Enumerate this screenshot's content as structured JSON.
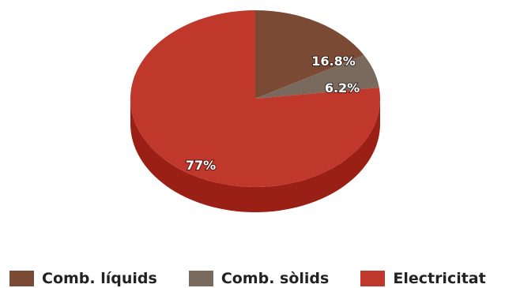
{
  "chart_data": {
    "type": "pie",
    "style": "3d",
    "categories": [
      "Comb. líquids",
      "Comb. sòlids",
      "Electricitat"
    ],
    "values": [
      16.8,
      6.2,
      77
    ],
    "labels": [
      "16.8%",
      "6.2%",
      "77%"
    ],
    "colors": [
      "#7a4a35",
      "#7a6a5e",
      "#c0382b"
    ],
    "side_colors": [
      "#5a3424",
      "#5a4d43",
      "#9a1f15"
    ],
    "legend_position": "bottom",
    "start_angle": "12 o'clock, clockwise"
  }
}
